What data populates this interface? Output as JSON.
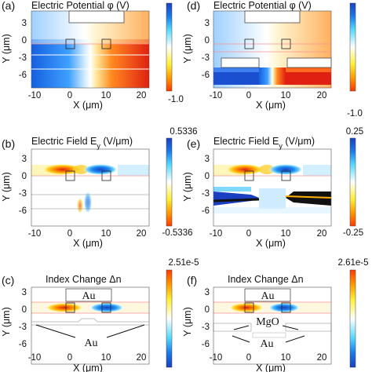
{
  "figure": {
    "panels": [
      {
        "id": "a",
        "label": "(a)",
        "title": "Electric Potential φ (V)",
        "cbar_top": "",
        "cbar_bottom": "-1.0",
        "xticks": [
          "-10",
          "0",
          "10",
          "20"
        ],
        "yticks": [
          "3",
          "0",
          "-3",
          "-6"
        ],
        "xlabel": "X (μm)",
        "ylabel": "Y (μm)",
        "annotations": []
      },
      {
        "id": "d",
        "label": "(d)",
        "title": "Electric Potential φ (V)",
        "cbar_top": "",
        "cbar_bottom": "-1.0",
        "xticks": [
          "-10",
          "0",
          "10",
          "20"
        ],
        "yticks": [
          "3",
          "0",
          "-3",
          "-6"
        ],
        "xlabel": "X (μm)",
        "ylabel": "Y (μm)",
        "annotations": []
      },
      {
        "id": "b",
        "label": "(b)",
        "title": "Electric Field E",
        "title_sub": "y",
        "title_unit": " (V/μm)",
        "cbar_top": "0.5336",
        "cbar_bottom": "-0.5336",
        "xticks": [
          "-10",
          "0",
          "10",
          "20"
        ],
        "yticks": [
          "3",
          "0",
          "-3",
          "-6"
        ],
        "xlabel": "X (μm)",
        "ylabel": "Y (μm)",
        "annotations": []
      },
      {
        "id": "e",
        "label": "(e)",
        "title": "Electric Field E",
        "title_sub": "y",
        "title_unit": " (V/μm)",
        "cbar_top": "0.25",
        "cbar_bottom": "-0.25",
        "xticks": [
          "-10",
          "0",
          "10",
          "20"
        ],
        "yticks": [
          "3",
          "0",
          "-3",
          "-6"
        ],
        "xlabel": "X (μm)",
        "ylabel": "Y (μm)",
        "annotations": []
      },
      {
        "id": "c",
        "label": "(c)",
        "title": "Index Change Δn",
        "cbar_top": "2.51e-5",
        "cbar_bottom": "",
        "xticks": [
          "-10",
          "0",
          "10",
          "20"
        ],
        "yticks": [
          "3",
          "0",
          "-3",
          "-6"
        ],
        "xlabel": "X (μm)",
        "ylabel": "Y (μm)",
        "annotations": [
          "Au",
          "Au"
        ]
      },
      {
        "id": "f",
        "label": "(f)",
        "title": "Index Change Δn",
        "cbar_top": "2.61e-5",
        "cbar_bottom": "",
        "xticks": [
          "-10",
          "0",
          "10",
          "20"
        ],
        "yticks": [
          "3",
          "0",
          "-3",
          "-6"
        ],
        "xlabel": "X (μm)",
        "ylabel": "Y (μm)",
        "annotations": [
          "Au",
          "MgO",
          "Au"
        ]
      }
    ],
    "colors": {
      "positive": "#e02010",
      "neutral": "#ffffff",
      "negative": "#1a4fd0",
      "gold_layer": "#ff8a00",
      "cyan_layer": "#44c8ff"
    }
  }
}
